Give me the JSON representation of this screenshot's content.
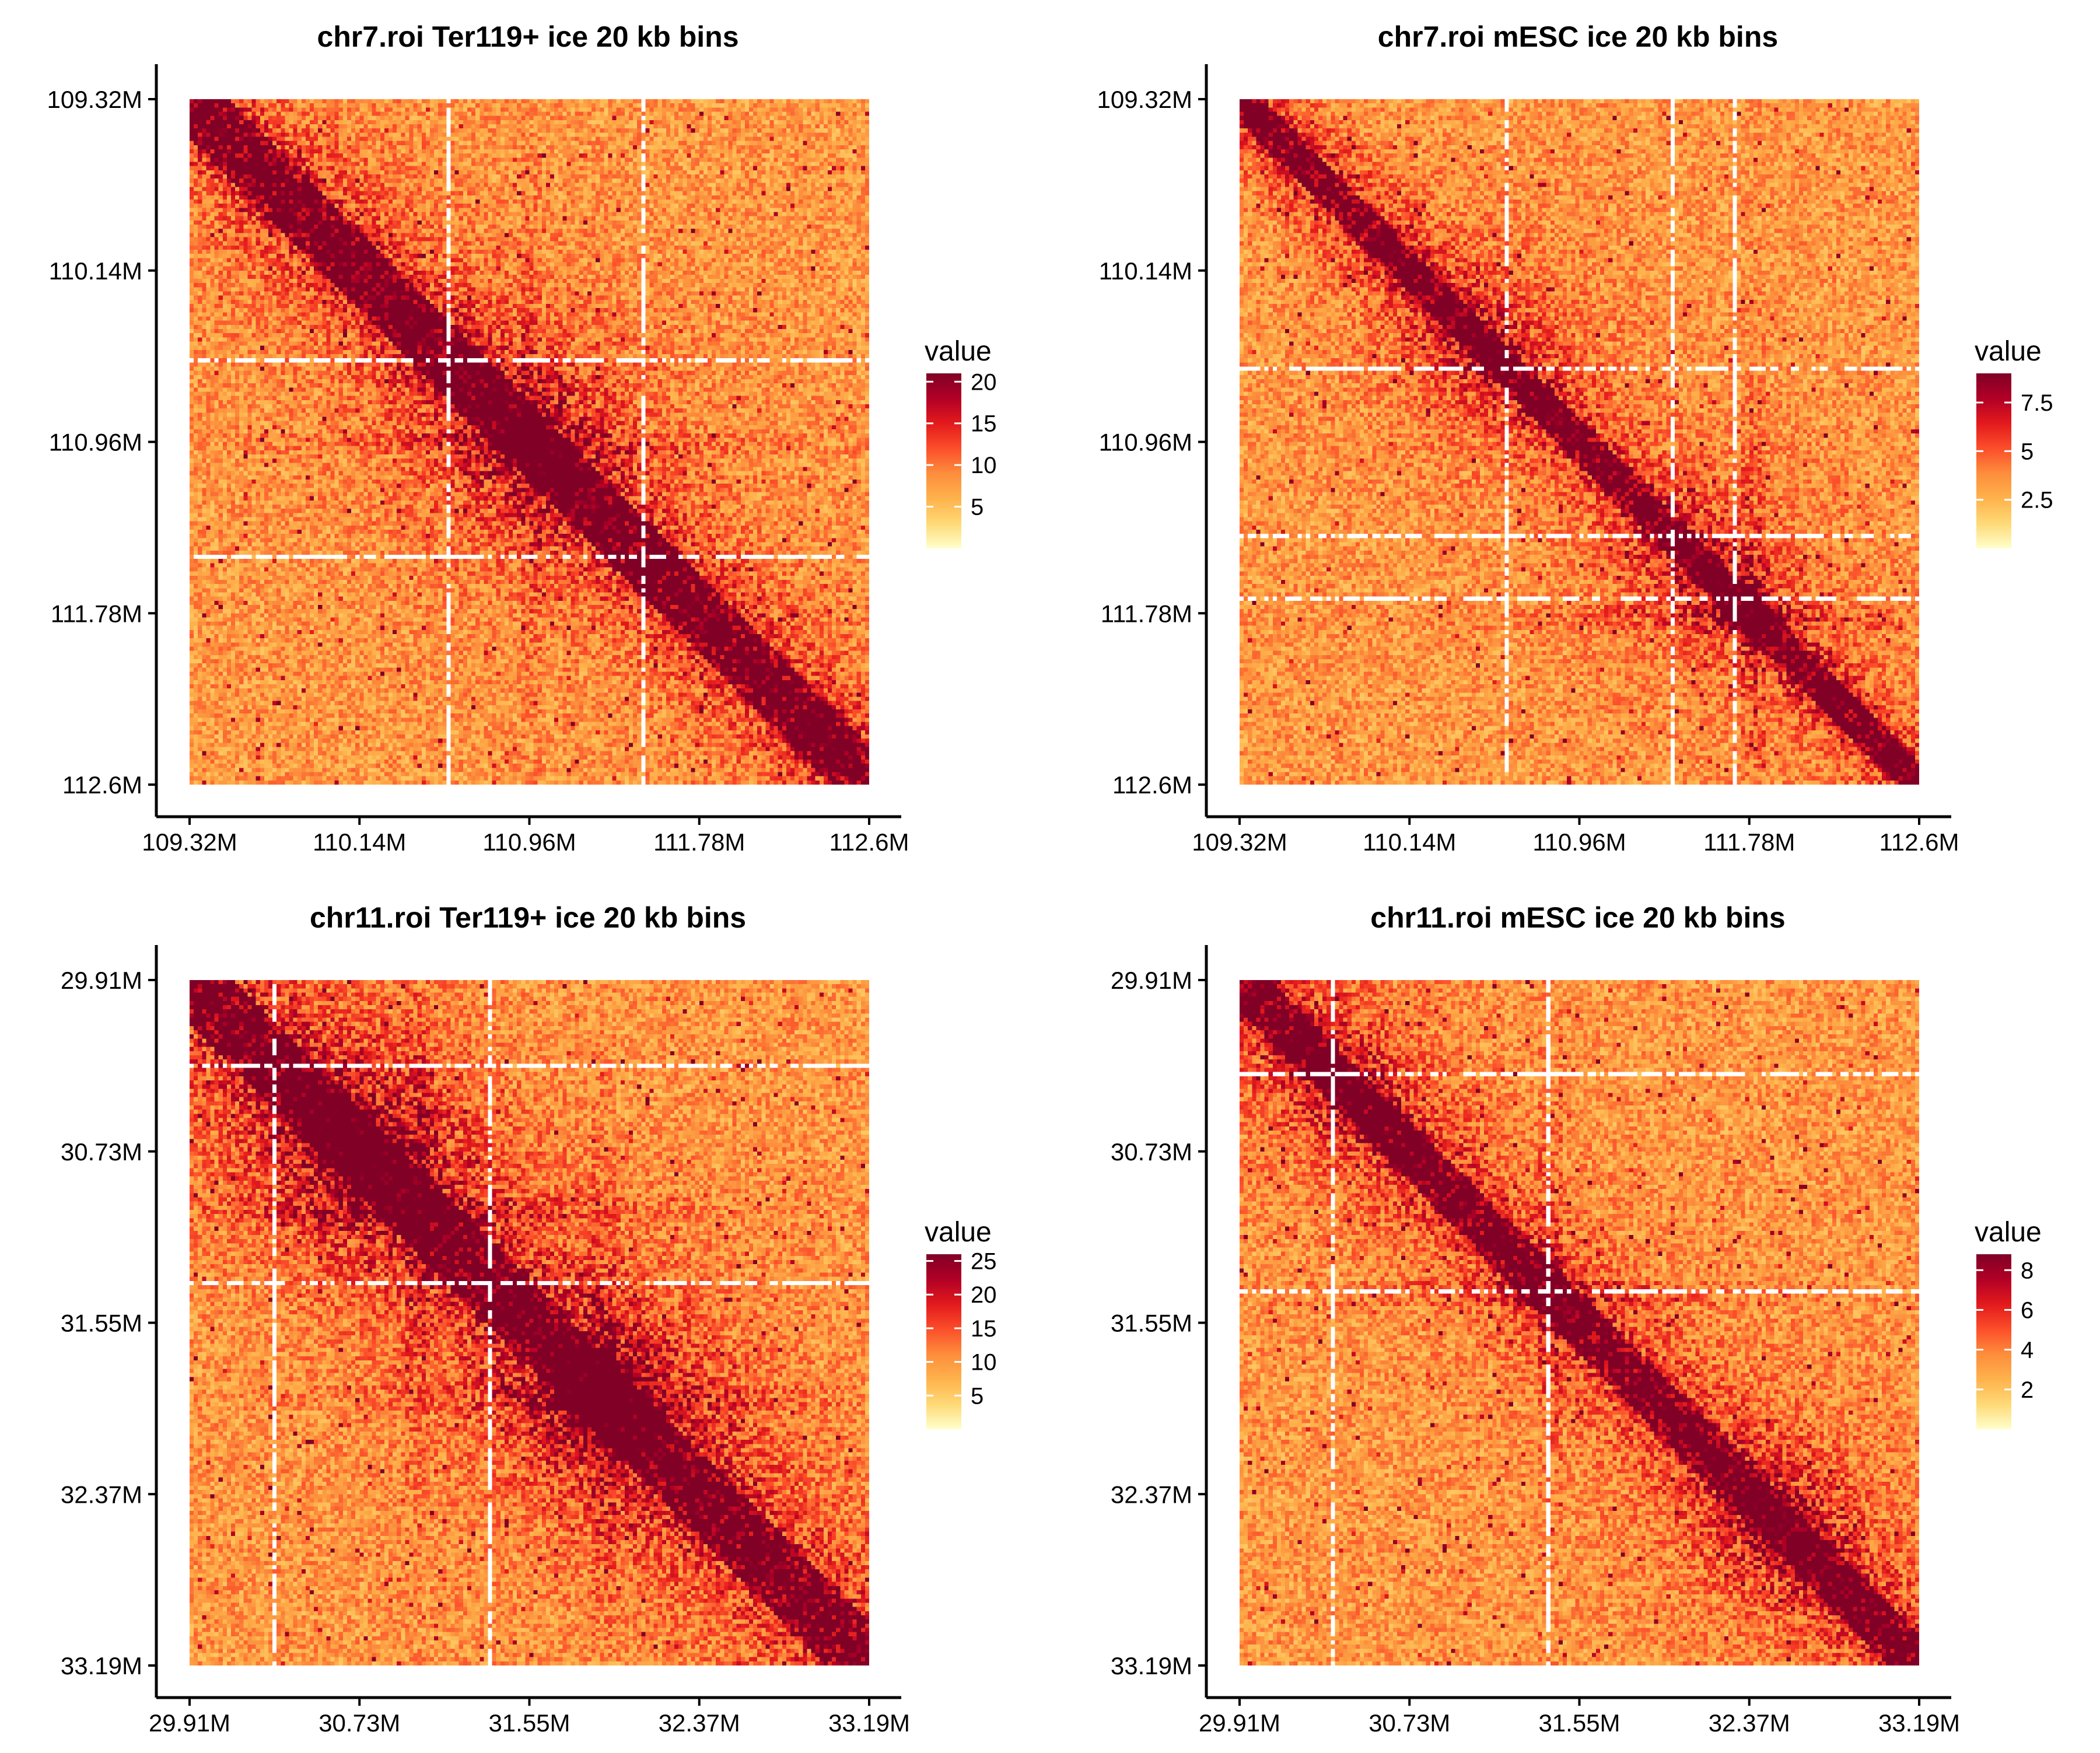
{
  "chart_data": [
    {
      "type": "heatmap",
      "title": "chr7.roi Ter119+ ice 20 kb bins",
      "x_ticks": [
        "109.32M",
        "110.14M",
        "110.96M",
        "111.78M",
        "112.6M"
      ],
      "y_ticks": [
        "109.32M",
        "110.14M",
        "110.96M",
        "111.78M",
        "112.6M"
      ],
      "xlim": [
        109.32,
        112.6
      ],
      "ylim": [
        109.32,
        112.6
      ],
      "legend": {
        "title": "value",
        "ticks": [
          5,
          10,
          15,
          20
        ],
        "range": [
          0,
          21
        ],
        "placement": "right"
      },
      "colorscale": [
        "#FFFFCC",
        "#FED976",
        "#FEB24C",
        "#FD8D3C",
        "#FC4E2A",
        "#E31A1C",
        "#B10026",
        "#800026"
      ],
      "features": {
        "diagonal_width": 0.1,
        "domains": [
          {
            "center": 110.96,
            "strength": 1.0
          }
        ],
        "stripes": [
          110.96
        ],
        "gap_rows": [
          110.55,
          111.5
        ]
      }
    },
    {
      "type": "heatmap",
      "title": "chr7.roi mESC ice 20 kb bins",
      "x_ticks": [
        "109.32M",
        "110.14M",
        "110.96M",
        "111.78M",
        "112.6M"
      ],
      "y_ticks": [
        "109.32M",
        "110.14M",
        "110.96M",
        "111.78M",
        "112.6M"
      ],
      "xlim": [
        109.32,
        112.6
      ],
      "ylim": [
        109.32,
        112.6
      ],
      "legend": {
        "title": "value",
        "ticks": [
          2.5,
          5.0,
          7.5
        ],
        "range": [
          0,
          9
        ],
        "placement": "right"
      },
      "colorscale": [
        "#FFFFCC",
        "#FED976",
        "#FEB24C",
        "#FD8D3C",
        "#FC4E2A",
        "#E31A1C",
        "#B10026",
        "#800026"
      ],
      "features": {
        "diagonal_width": 0.06,
        "domains": [
          {
            "center": 110.5,
            "strength": 0.6
          },
          {
            "center": 111.6,
            "strength": 0.7
          }
        ],
        "stripes": [
          111.78
        ],
        "gap_rows": [
          110.6,
          111.4,
          111.7
        ]
      }
    },
    {
      "type": "heatmap",
      "title": "chr11.roi Ter119+ ice 20 kb bins",
      "x_ticks": [
        "29.91M",
        "30.73M",
        "31.55M",
        "32.37M",
        "33.19M"
      ],
      "y_ticks": [
        "29.91M",
        "30.73M",
        "31.55M",
        "32.37M",
        "33.19M"
      ],
      "xlim": [
        29.91,
        33.19
      ],
      "ylim": [
        29.91,
        33.19
      ],
      "legend": {
        "title": "value",
        "ticks": [
          5,
          10,
          15,
          20,
          25
        ],
        "range": [
          0,
          26
        ],
        "placement": "right"
      },
      "colorscale": [
        "#FFFFCC",
        "#FED976",
        "#FEB24C",
        "#FD8D3C",
        "#FC4E2A",
        "#E31A1C",
        "#B10026",
        "#800026"
      ],
      "features": {
        "diagonal_width": 0.12,
        "domains": [
          {
            "center": 30.73,
            "strength": 1.2
          },
          {
            "center": 31.9,
            "strength": 1.3
          }
        ],
        "stripes": [
          31.0,
          31.9
        ],
        "gap_rows": [
          30.3,
          31.35
        ]
      }
    },
    {
      "type": "heatmap",
      "title": "chr11.roi mESC ice 20 kb bins",
      "x_ticks": [
        "29.91M",
        "30.73M",
        "31.55M",
        "32.37M",
        "33.19M"
      ],
      "y_ticks": [
        "29.91M",
        "30.73M",
        "31.55M",
        "32.37M",
        "33.19M"
      ],
      "xlim": [
        29.91,
        33.19
      ],
      "ylim": [
        29.91,
        33.19
      ],
      "legend": {
        "title": "value",
        "ticks": [
          2,
          4,
          6,
          8
        ],
        "range": [
          0,
          8.8
        ],
        "placement": "right"
      },
      "colorscale": [
        "#FFFFCC",
        "#FED976",
        "#FEB24C",
        "#FD8D3C",
        "#FC4E2A",
        "#E31A1C",
        "#B10026",
        "#800026"
      ],
      "features": {
        "diagonal_width": 0.08,
        "domains": [
          {
            "center": 30.4,
            "strength": 0.6
          },
          {
            "center": 32.5,
            "strength": 0.7
          }
        ],
        "stripes": [
          31.4
        ],
        "gap_rows": [
          30.35,
          31.4
        ]
      }
    }
  ]
}
